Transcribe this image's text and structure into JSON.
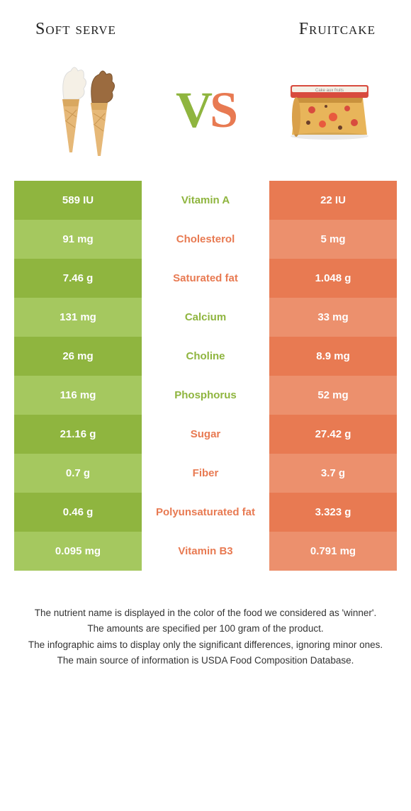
{
  "left": {
    "title": "Soft serve"
  },
  "right": {
    "title": "Fruitcake"
  },
  "vs": {
    "v": "V",
    "s": "S"
  },
  "colors": {
    "left_dark": "#8fb53f",
    "left_light": "#a5c85f",
    "right_dark": "#e87a52",
    "right_light": "#ec906d",
    "text_green": "#8fb53f",
    "text_orange": "#e87a52"
  },
  "rows": [
    {
      "left": "589 IU",
      "label": "Vitamin A",
      "right": "22 IU",
      "winner": "left"
    },
    {
      "left": "91 mg",
      "label": "Cholesterol",
      "right": "5 mg",
      "winner": "right"
    },
    {
      "left": "7.46 g",
      "label": "Saturated fat",
      "right": "1.048 g",
      "winner": "right"
    },
    {
      "left": "131 mg",
      "label": "Calcium",
      "right": "33 mg",
      "winner": "left"
    },
    {
      "left": "26 mg",
      "label": "Choline",
      "right": "8.9 mg",
      "winner": "left"
    },
    {
      "left": "116 mg",
      "label": "Phosphorus",
      "right": "52 mg",
      "winner": "left"
    },
    {
      "left": "21.16 g",
      "label": "Sugar",
      "right": "27.42 g",
      "winner": "right"
    },
    {
      "left": "0.7 g",
      "label": "Fiber",
      "right": "3.7 g",
      "winner": "right"
    },
    {
      "left": "0.46 g",
      "label": "Polyunsaturated fat",
      "right": "3.323 g",
      "winner": "right"
    },
    {
      "left": "0.095 mg",
      "label": "Vitamin B3",
      "right": "0.791 mg",
      "winner": "right"
    }
  ],
  "footer": [
    "The nutrient name is displayed in the color of the food we considered as 'winner'.",
    "The amounts are specified per 100 gram of the product.",
    "The infographic aims to display only the significant differences, ignoring minor ones.",
    "The main source of information is USDA Food Composition Database."
  ]
}
